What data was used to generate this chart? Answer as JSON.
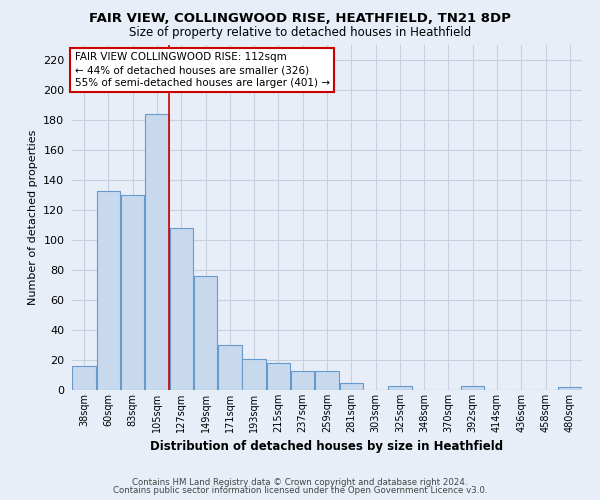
{
  "title": "FAIR VIEW, COLLINGWOOD RISE, HEATHFIELD, TN21 8DP",
  "subtitle": "Size of property relative to detached houses in Heathfield",
  "xlabel": "Distribution of detached houses by size in Heathfield",
  "ylabel": "Number of detached properties",
  "bar_labels": [
    "38sqm",
    "60sqm",
    "83sqm",
    "105sqm",
    "127sqm",
    "149sqm",
    "171sqm",
    "193sqm",
    "215sqm",
    "237sqm",
    "259sqm",
    "281sqm",
    "303sqm",
    "325sqm",
    "348sqm",
    "370sqm",
    "392sqm",
    "414sqm",
    "436sqm",
    "458sqm",
    "480sqm"
  ],
  "bar_values": [
    16,
    133,
    130,
    184,
    108,
    76,
    30,
    21,
    18,
    13,
    13,
    5,
    0,
    3,
    0,
    0,
    3,
    0,
    0,
    0,
    2
  ],
  "bar_color": "#c8d9ee",
  "bar_edge_color": "#6699cc",
  "ylim": [
    0,
    230
  ],
  "yticks": [
    0,
    20,
    40,
    60,
    80,
    100,
    120,
    140,
    160,
    180,
    200,
    220
  ],
  "vline_x": 3.5,
  "vline_color": "#cc0000",
  "annotation_line1": "FAIR VIEW COLLINGWOOD RISE: 112sqm",
  "annotation_line2": "← 44% of detached houses are smaller (326)",
  "annotation_line3": "55% of semi-detached houses are larger (401) →",
  "annotation_box_color": "#ffffff",
  "annotation_box_edge": "#cc0000",
  "footer_line1": "Contains HM Land Registry data © Crown copyright and database right 2024.",
  "footer_line2": "Contains public sector information licensed under the Open Government Licence v3.0.",
  "background_color": "#e8eef8",
  "grid_color": "#c8d0e0"
}
